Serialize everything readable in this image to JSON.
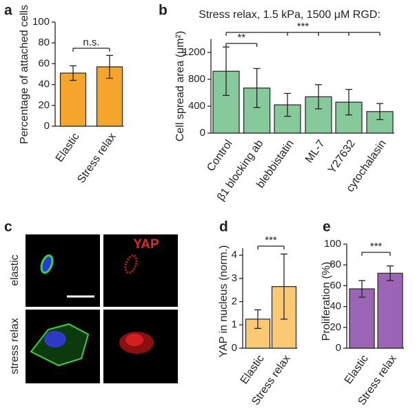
{
  "chart_data": [
    {
      "type": "bar",
      "label": "a",
      "ylabel": "Percentage of attached cells",
      "categories": [
        "Elastic",
        "Stress relax"
      ],
      "values": [
        51,
        57
      ],
      "errors": [
        7,
        11
      ],
      "color": "#f5a52c",
      "ylim": [
        0,
        100
      ],
      "yticks": [
        0,
        20,
        40,
        60,
        80,
        100
      ],
      "annotations": [
        "n.s."
      ]
    },
    {
      "type": "bar",
      "label": "b",
      "title": "Stress relax, 1.5 kPa, 1500 μM RGD:",
      "ylabel": "Cell spread area (μm²)",
      "categories": [
        "Control",
        "β1 blocking ab",
        "blebbistatin",
        "ML-7",
        "Y27632",
        "cytochalasin"
      ],
      "values": [
        920,
        670,
        420,
        540,
        460,
        320
      ],
      "errors": [
        360,
        290,
        170,
        180,
        190,
        120
      ],
      "color": "#86c99a",
      "ylim": [
        0,
        1400
      ],
      "yticks": [
        0,
        400,
        800,
        1200
      ],
      "annotations": [
        "**",
        "***"
      ]
    },
    {
      "type": "bar",
      "label": "d",
      "ylabel": "YAP in nucleus (norm.)",
      "categories": [
        "Elastic",
        "Stress relax"
      ],
      "values": [
        1.25,
        2.65
      ],
      "errors": [
        0.4,
        1.4
      ],
      "color": "#fbc873",
      "ylim": [
        0,
        4.3
      ],
      "yticks": [
        0,
        1,
        2,
        3,
        4
      ],
      "annotations": [
        "***"
      ]
    },
    {
      "type": "bar",
      "label": "e",
      "ylabel": "Proliferation (%)",
      "categories": [
        "Elastic",
        "Stress relax"
      ],
      "values": [
        57,
        72
      ],
      "errors": [
        8,
        7
      ],
      "color": "#9b64b5",
      "ylim": [
        0,
        100
      ],
      "yticks": [
        0,
        20,
        40,
        60,
        80,
        100
      ],
      "annotations": [
        "***"
      ]
    }
  ],
  "images": {
    "label": "c",
    "channel": "YAP",
    "rows": [
      "elastic",
      "stress relax"
    ]
  }
}
